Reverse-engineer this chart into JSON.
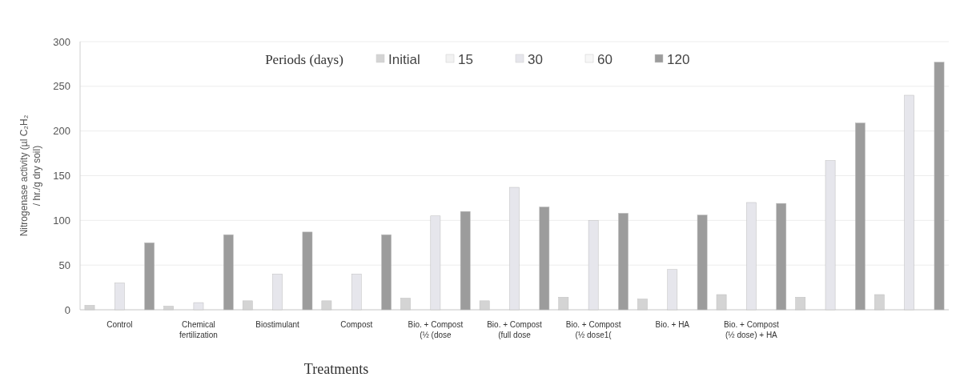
{
  "chart_data": {
    "type": "bar",
    "xlabel": "Treatments",
    "ylabel": "Nitrogenase activity (µl C₂H₂ / hr./g dry soil)",
    "legend_title": "Periods (days)",
    "legend": "top",
    "grid": "y",
    "categories": [
      "Control",
      "Chemical fertilization",
      "Biostimulant",
      "Compost",
      "Bio. + Compost (½ (dose",
      "Bio. + Compost (full dose",
      "Bio. + Compost (½ dose1(",
      "Bio. + HA",
      "Bio. + Compost (½ dose) + HA",
      null,
      null
    ],
    "ylim": [
      0,
      300
    ],
    "yticks": [
      0,
      50,
      100,
      150,
      200,
      250,
      300
    ],
    "series": [
      {
        "name": "Initial",
        "color": "#d4d4d4",
        "values": [
          5,
          4,
          10,
          10,
          13,
          10,
          14,
          12,
          17,
          14,
          17
        ]
      },
      {
        "name": "15",
        "color": "#f2f2f2",
        "values": [
          null,
          null,
          null,
          null,
          null,
          null,
          null,
          null,
          null,
          null,
          null
        ]
      },
      {
        "name": "30",
        "color": "#e6e6ec",
        "values": [
          30,
          8,
          40,
          40,
          105,
          137,
          100,
          45,
          120,
          167,
          240
        ]
      },
      {
        "name": "60",
        "color": "#f7f7f7",
        "values": [
          null,
          null,
          null,
          null,
          null,
          null,
          null,
          null,
          null,
          null,
          null
        ]
      },
      {
        "name": "120",
        "color": "#9c9c9c",
        "values": [
          75,
          84,
          87,
          84,
          110,
          115,
          108,
          106,
          119,
          209,
          277
        ]
      }
    ]
  }
}
